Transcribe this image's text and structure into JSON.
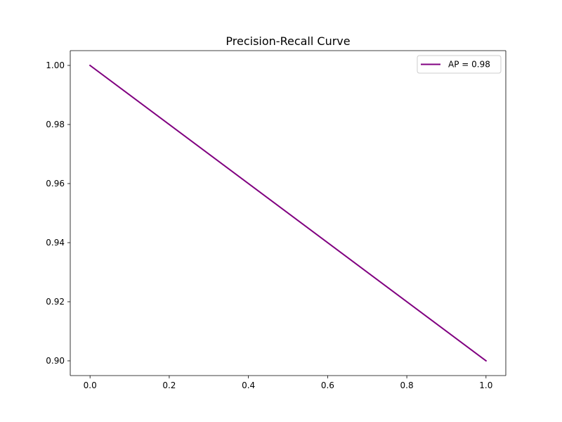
{
  "chart_data": {
    "type": "line",
    "title": "Precision-Recall Curve",
    "xlabel": "",
    "ylabel": "",
    "xlim": [
      -0.05,
      1.05
    ],
    "ylim": [
      0.895,
      1.005
    ],
    "xticks": [
      0.0,
      0.2,
      0.4,
      0.6,
      0.8,
      1.0
    ],
    "xtick_labels": [
      "0.0",
      "0.2",
      "0.4",
      "0.6",
      "0.8",
      "1.0"
    ],
    "yticks": [
      0.9,
      0.92,
      0.94,
      0.96,
      0.98,
      1.0
    ],
    "ytick_labels": [
      "0.90",
      "0.92",
      "0.94",
      "0.96",
      "0.98",
      "1.00"
    ],
    "grid": false,
    "legend_position": "top-right",
    "series": [
      {
        "name": "AP = 0.98",
        "color": "#800080",
        "x": [
          0.0,
          1.0
        ],
        "y": [
          1.0,
          0.9
        ]
      }
    ]
  }
}
